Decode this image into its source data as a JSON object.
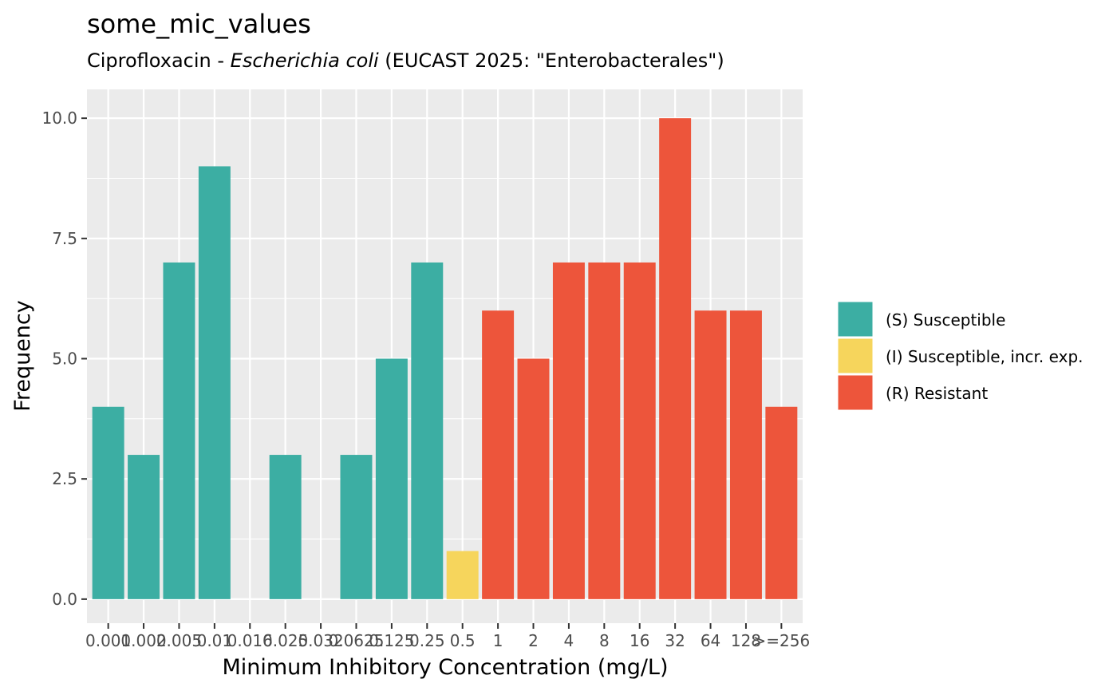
{
  "chart_data": {
    "type": "bar",
    "title": "some_mic_values",
    "subtitle": {
      "prefix": "Ciprofloxacin - ",
      "organism": "Escherichia coli",
      "suffix": " (EUCAST 2025: \"Enterobacterales\")"
    },
    "xlabel": "Minimum Inhibitory Concentration (mg/L)",
    "ylabel": "Frequency",
    "ylim": [
      -0.5,
      10.6
    ],
    "yticks": [
      0.0,
      2.5,
      5.0,
      7.5,
      10.0
    ],
    "ytick_labels": [
      "0.0",
      "2.5",
      "5.0",
      "7.5",
      "10.0"
    ],
    "categories": [
      "0.001",
      "0.002",
      "0.005",
      "0.01",
      "0.016",
      "0.025",
      "0.032",
      "0.0625",
      "0.125",
      "0.25",
      "0.5",
      "1",
      "2",
      "4",
      "8",
      "16",
      "32",
      "64",
      "128",
      ">=256"
    ],
    "values": [
      4,
      3,
      7,
      9,
      0,
      3,
      0,
      3,
      5,
      7,
      1,
      6,
      5,
      7,
      7,
      7,
      10,
      6,
      6,
      4
    ],
    "interpretation": [
      "S",
      "S",
      "S",
      "S",
      "S",
      "S",
      "S",
      "S",
      "S",
      "S",
      "I",
      "R",
      "R",
      "R",
      "R",
      "R",
      "R",
      "R",
      "R",
      "R"
    ],
    "legend": [
      {
        "key": "S",
        "label": "(S) Susceptible",
        "color": "#3CAEA3"
      },
      {
        "key": "I",
        "label": "(I) Susceptible, incr. exp.",
        "color": "#F6D55C"
      },
      {
        "key": "R",
        "label": "(R) Resistant",
        "color": "#ED553B"
      }
    ],
    "legend_position": "right",
    "grid": true,
    "panel_background": "#EBEBEB",
    "grid_color": "#FFFFFF"
  }
}
